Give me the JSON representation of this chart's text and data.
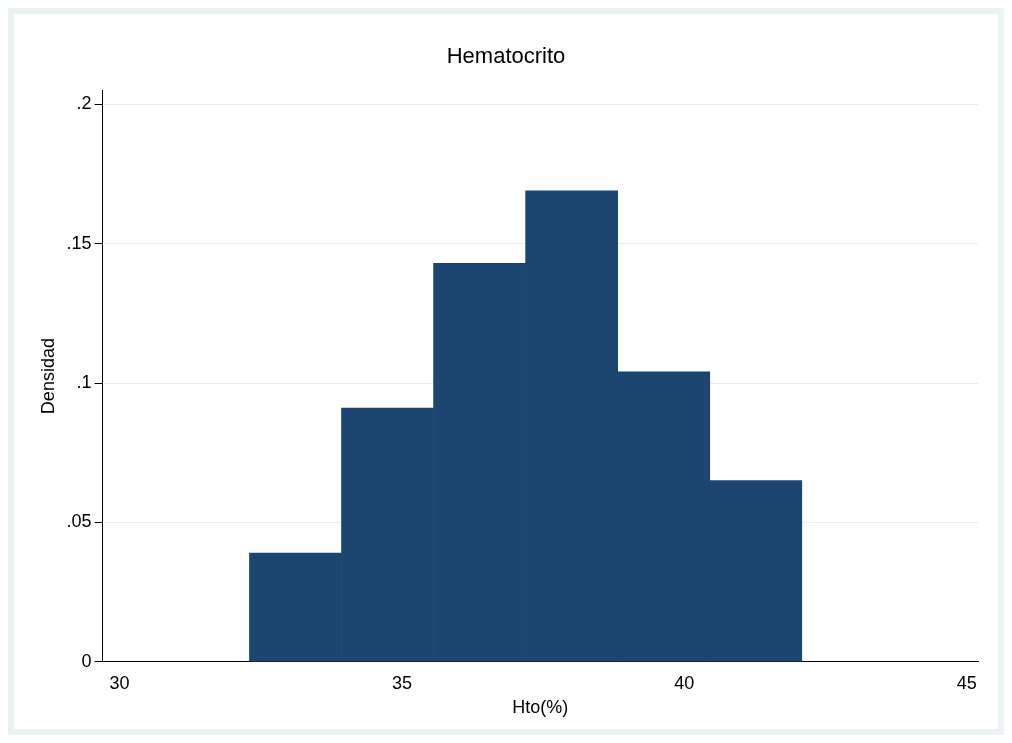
{
  "chart_data": {
    "type": "histogram",
    "title": "Hematocrito",
    "xlabel": "Hto(%)",
    "ylabel": "Densidad",
    "bins": [
      32.3,
      33.93,
      35.56,
      37.19,
      38.82,
      40.45,
      42.08
    ],
    "values": [
      0.039,
      0.091,
      0.143,
      0.169,
      0.104,
      0.065
    ],
    "color": "#1c4670",
    "xlim": [
      29.7,
      45.2
    ],
    "xticks": [
      30,
      35,
      40,
      45
    ],
    "ylim": [
      0,
      0.205
    ],
    "yticks": [
      0,
      {
        "value": 0.05,
        "label": ".05"
      },
      {
        "value": 0.1,
        "label": ".1"
      },
      {
        "value": 0.15,
        "label": ".15"
      },
      {
        "value": 0.2,
        "label": ".2"
      }
    ],
    "grid": "y",
    "legend": false
  }
}
